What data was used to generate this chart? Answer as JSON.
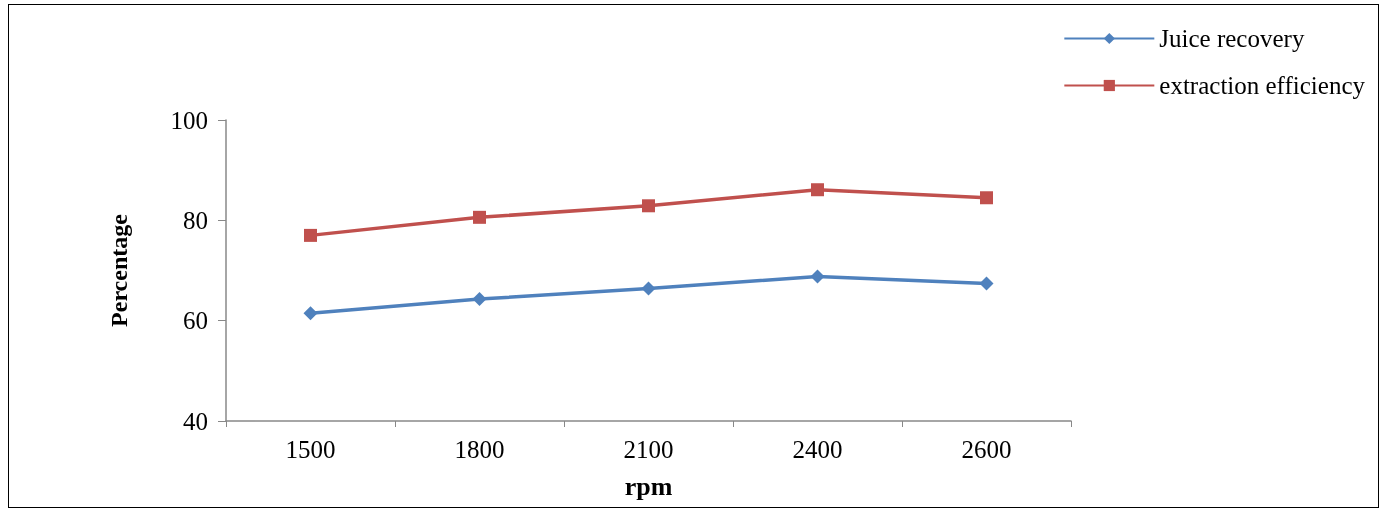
{
  "chart_data": {
    "type": "line",
    "xlabel": "rpm",
    "ylabel": "Percentage",
    "categories": [
      "1500",
      "1800",
      "2100",
      "2400",
      "2600"
    ],
    "series": [
      {
        "name": "Juice recovery",
        "color": "#4f81bd",
        "marker": "diamond",
        "values": [
          61.5,
          64.3,
          66.4,
          68.8,
          67.4
        ]
      },
      {
        "name": "extraction efficiency",
        "color": "#c0504d",
        "marker": "square",
        "values": [
          77.0,
          80.6,
          82.9,
          86.1,
          84.5
        ]
      }
    ],
    "ylim": [
      40,
      100
    ],
    "yticks": [
      40,
      60,
      80,
      100
    ],
    "grid": false,
    "legend": "top right",
    "line_style": "solid"
  }
}
